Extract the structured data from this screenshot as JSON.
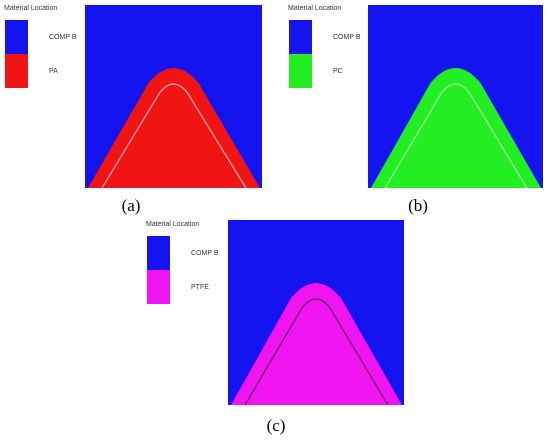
{
  "panels": [
    {
      "legend_title": "Material Location",
      "caption": "(a)",
      "inner_line": "#f4b0b0",
      "materials": [
        {
          "name": "COMP B",
          "color": "#1414f0"
        },
        {
          "name": "PA",
          "color": "#f01414"
        }
      ]
    },
    {
      "legend_title": "Material Location",
      "caption": "(b)",
      "inner_line": "#a8f8a8",
      "materials": [
        {
          "name": "COMP B",
          "color": "#1414f0"
        },
        {
          "name": "PC",
          "color": "#22ee22"
        }
      ]
    },
    {
      "legend_title": "Material Location",
      "caption": "(c)",
      "inner_line": "#602060",
      "materials": [
        {
          "name": "COMP B",
          "color": "#1414f0"
        },
        {
          "name": "PTFE",
          "color": "#f014f0"
        }
      ]
    }
  ]
}
